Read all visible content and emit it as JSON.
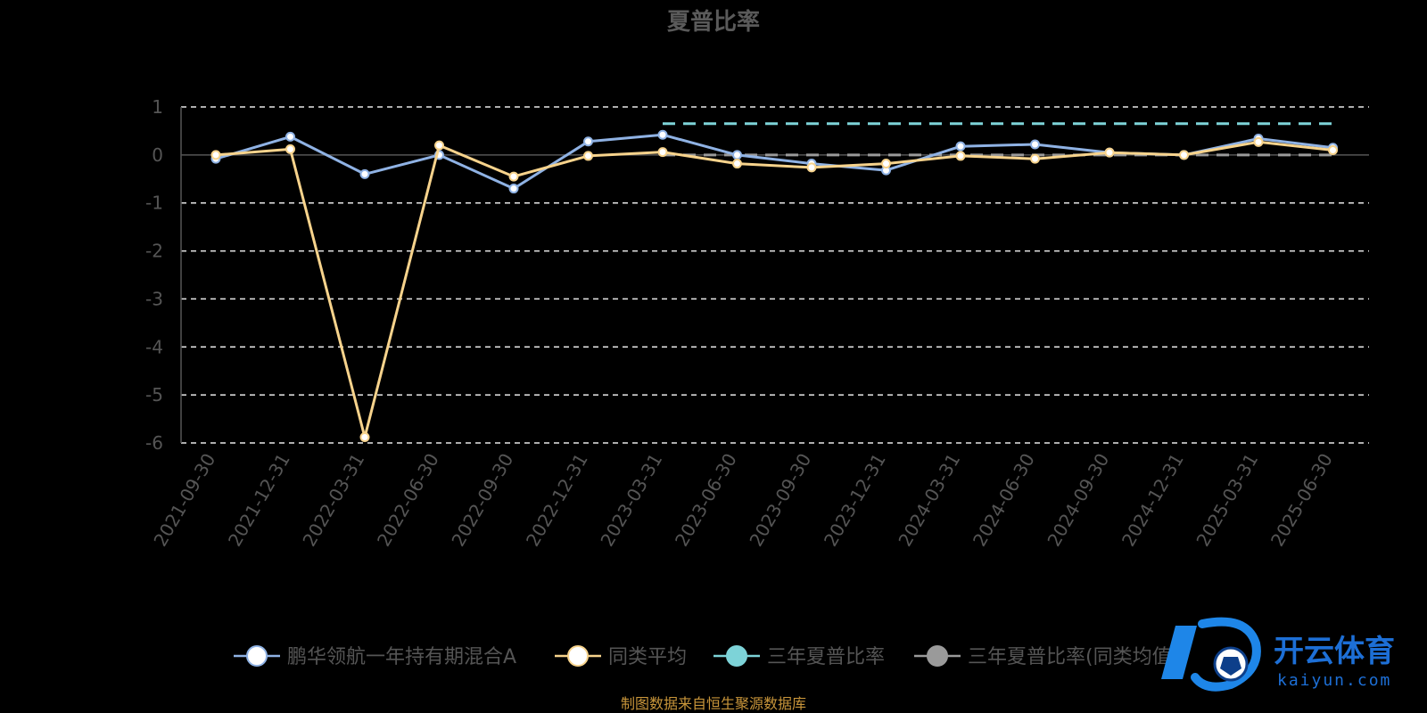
{
  "chart_data": {
    "type": "line",
    "title": "夏普比率",
    "categories": [
      "2021-09-30",
      "2021-12-31",
      "2022-03-31",
      "2022-06-30",
      "2022-09-30",
      "2022-12-31",
      "2023-03-31",
      "2023-06-30",
      "2023-09-30",
      "2023-12-31",
      "2024-03-31",
      "2024-06-30",
      "2024-09-30",
      "2024-12-31",
      "2025-03-31",
      "2025-06-30"
    ],
    "yticks": [
      "1",
      "0",
      "-1",
      "-2",
      "-3",
      "-4",
      "-5",
      "-6"
    ],
    "ylim": [
      -6,
      1
    ],
    "grid": true,
    "legend_position": "bottom",
    "series": [
      {
        "name": "鹏华领航一年持有期混合A",
        "color": "#8fb2e4",
        "style": "solid",
        "values": [
          -0.08,
          0.38,
          -0.4,
          0.0,
          -0.7,
          0.28,
          0.42,
          0.0,
          -0.18,
          -0.32,
          0.18,
          0.22,
          0.05,
          0.0,
          0.34,
          0.15
        ]
      },
      {
        "name": "同类平均",
        "color": "#f7d38c",
        "style": "solid",
        "values": [
          0.0,
          0.12,
          -5.88,
          0.2,
          -0.45,
          -0.02,
          0.06,
          -0.18,
          -0.26,
          -0.18,
          -0.02,
          -0.08,
          0.05,
          0.0,
          0.27,
          0.1
        ]
      },
      {
        "name": "三年夏普比率",
        "color": "#7dd3d8",
        "style": "dashed",
        "values": [
          null,
          null,
          null,
          null,
          null,
          null,
          0.65,
          0.65,
          0.65,
          0.65,
          0.65,
          0.65,
          0.65,
          0.65,
          0.65,
          0.65
        ]
      },
      {
        "name": "三年夏普比率(同类均值)",
        "color": "#9a9a9a",
        "style": "dashed",
        "values": [
          null,
          null,
          null,
          null,
          null,
          null,
          0.0,
          0.0,
          0.0,
          0.0,
          0.0,
          0.0,
          0.0,
          0.0,
          0.0,
          0.0
        ]
      }
    ]
  },
  "source_note": "制图数据来自恒生聚源数据库",
  "watermark": {
    "brand": "开云体育",
    "site": "kaiyun.com"
  }
}
